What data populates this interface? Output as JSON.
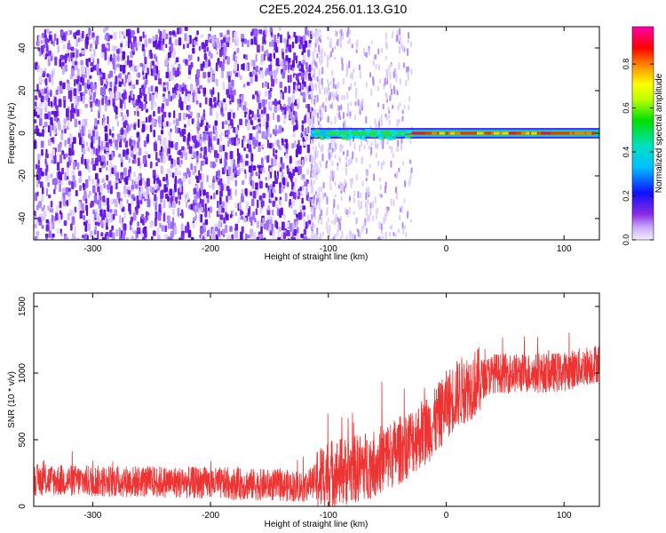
{
  "title": "C2E5.2024.256.01.13.G10",
  "colors": {
    "snr_line": "#ee3333",
    "axis": "#000000",
    "noise_purple": "#7722ee",
    "noise_light": "#d9c4ff"
  },
  "chart_data": [
    {
      "type": "heatmap",
      "title": "C2E5.2024.256.01.13.G10",
      "xlabel": "Height of straight line (km)",
      "ylabel": "Frequency (Hz)",
      "xlim": [
        -350,
        130
      ],
      "ylim": [
        -50,
        50
      ],
      "xticks": [
        -300,
        -200,
        -100,
        0,
        100
      ],
      "yticks": [
        -40,
        -20,
        0,
        20,
        40
      ],
      "grid": false,
      "colorbar": {
        "label": "Normalized spectral amplitude",
        "range": [
          0.0,
          0.97
        ],
        "ticks": [
          0.0,
          0.2,
          0.4,
          0.6,
          0.8
        ],
        "colormap": "rainbow (purple→blue→cyan→green→yellow→red→magenta)"
      },
      "features": [
        {
          "region": "noise",
          "x_range": [
            -350,
            -115
          ],
          "y_range": [
            -50,
            50
          ],
          "amplitude": 0.05
        },
        {
          "region": "transition",
          "x_range": [
            -115,
            -30
          ],
          "y_range": [
            -50,
            50
          ],
          "amplitude": 0.03
        },
        {
          "region": "carrier",
          "x_range": [
            -115,
            130
          ],
          "frequency_hz": 0,
          "amplitude_peak": 0.97
        }
      ]
    },
    {
      "type": "line",
      "xlabel": "Height of straight line (km)",
      "ylabel": "SNR (10 * v/v)",
      "xlim": [
        -350,
        130
      ],
      "ylim": [
        0,
        1600
      ],
      "xticks": [
        -300,
        -200,
        -100,
        0,
        100
      ],
      "yticks": [
        0,
        500,
        1000,
        1500
      ],
      "grid": false,
      "series": [
        {
          "x": [
            -350,
            -300,
            -250,
            -200,
            -150,
            -120,
            -100,
            -80,
            -60,
            -40,
            -25,
            -10,
            0,
            10,
            20,
            40,
            60,
            80,
            100,
            130
          ],
          "y": [
            200,
            190,
            185,
            175,
            160,
            150,
            250,
            270,
            330,
            420,
            520,
            620,
            760,
            850,
            900,
            1000,
            1000,
            1000,
            1010,
            1080
          ]
        }
      ]
    }
  ]
}
